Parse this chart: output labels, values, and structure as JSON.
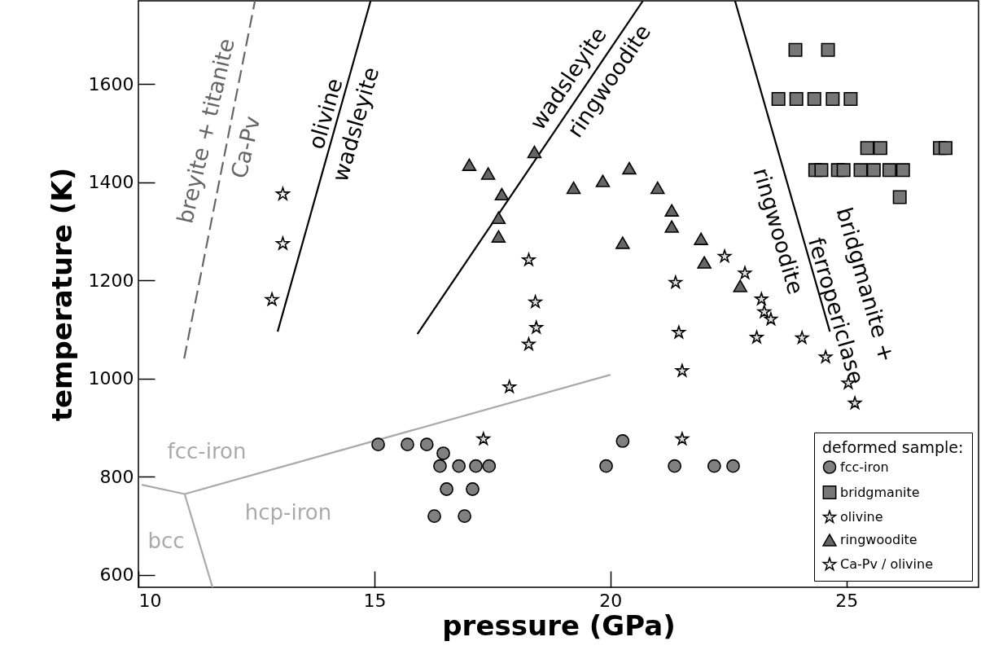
{
  "chart_data": {
    "type": "scatter",
    "xlabel": "pressure (GPa)",
    "ylabel": "temperature (K)",
    "xlim": [
      10,
      27.8
    ],
    "ylim": [
      575,
      1770
    ],
    "xticks": [
      10,
      15,
      20,
      25
    ],
    "yticks": [
      600,
      800,
      1000,
      1200,
      1400,
      1600
    ],
    "grid": false,
    "legend": "bottom right",
    "legend_title": "deformed sample:",
    "series": [
      {
        "name": "fcc-iron",
        "marker": "circle",
        "color": "#808080",
        "x": [
          15.08,
          15.7,
          16.11,
          16.46,
          16.39,
          16.79,
          17.15,
          17.43,
          16.53,
          17.08,
          16.27,
          16.91,
          19.91,
          20.26,
          21.36,
          22.2,
          22.6
        ],
        "values": [
          866,
          866,
          866,
          848,
          822,
          822,
          822,
          822,
          775,
          775,
          720,
          720,
          822,
          873,
          822,
          822,
          822
        ]
      },
      {
        "name": "bridgmanite",
        "marker": "square",
        "color": "#777777",
        "x": [
          23.92,
          24.61,
          23.56,
          23.94,
          24.32,
          24.71,
          25.09,
          25.44,
          25.72,
          26.98,
          27.1,
          24.34,
          24.47,
          24.82,
          24.94,
          25.3,
          25.58,
          25.91,
          26.2,
          26.13
        ],
        "values": [
          1670,
          1670,
          1570,
          1570,
          1570,
          1570,
          1570,
          1470,
          1470,
          1470,
          1470,
          1425,
          1425,
          1425,
          1425,
          1425,
          1425,
          1425,
          1425,
          1370
        ]
      },
      {
        "name": "olivine",
        "marker": "star",
        "color": "#e0e0e0",
        "x": [
          18.27,
          18.41,
          18.43,
          18.27,
          17.86,
          17.31,
          21.45,
          21.52,
          21.52,
          21.38,
          22.42,
          22.85,
          23.2,
          23.26,
          23.4,
          23.1,
          24.06,
          24.56,
          25.04,
          25.18
        ],
        "values": [
          1242,
          1156,
          1104,
          1070,
          983,
          877,
          1094,
          1016,
          877,
          1196,
          1249,
          1215,
          1162,
          1136,
          1121,
          1084,
          1083,
          1044,
          991,
          950
        ]
      },
      {
        "name": "ringwoodite",
        "marker": "triangle",
        "color": "#666666",
        "x": [
          17.01,
          17.41,
          17.7,
          17.63,
          17.63,
          18.39,
          19.22,
          19.84,
          20.4,
          21.0,
          21.3,
          21.3,
          20.26,
          21.92,
          21.99,
          22.75
        ],
        "values": [
          1436,
          1418,
          1376,
          1328,
          1290,
          1462,
          1389,
          1403,
          1429,
          1389,
          1343,
          1310,
          1277,
          1285,
          1237,
          1189
        ]
      },
      {
        "name": "Ca-Pv / olivine",
        "marker": "star",
        "color": "#f8f4fa",
        "x": [
          13.06,
          13.06,
          12.83
        ],
        "values": [
          1376,
          1275,
          1161
        ]
      },
      {
        "type": "line",
        "color": "#666666",
        "line_style": "dashed",
        "x": [
          10.97,
          12.47
        ],
        "values": [
          1041,
          1770
        ]
      },
      {
        "type": "line",
        "color": "#000000",
        "line_style": "solid",
        "x": [
          12.95,
          14.92
        ],
        "values": [
          1096,
          1770
        ]
      },
      {
        "type": "line",
        "color": "#000000",
        "line_style": "solid",
        "x": [
          15.91,
          20.69
        ],
        "values": [
          1091,
          1770
        ]
      },
      {
        "type": "line",
        "color": "#000000",
        "line_style": "solid",
        "x": [
          22.64,
          24.65
        ],
        "values": [
          1770,
          1096
        ]
      },
      {
        "type": "line",
        "color": "#aaaaaa",
        "line_style": "solid",
        "x": [
          10.07,
          10.98,
          20.0
        ],
        "values": [
          784,
          765,
          1008
        ]
      },
      {
        "type": "line",
        "color": "#aaaaaa",
        "line_style": "solid",
        "x": [
          10.98,
          11.57
        ],
        "values": [
          765,
          575
        ]
      }
    ],
    "annotations": [
      "breyite + titanite",
      "Ca-Pv",
      "olivine",
      "wadsleyite",
      "wadsleyite",
      "ringwoodite",
      "ringwoodite",
      "ferropericlase",
      "bridgmanite +",
      "fcc-iron",
      "hcp-iron",
      "bcc"
    ]
  }
}
